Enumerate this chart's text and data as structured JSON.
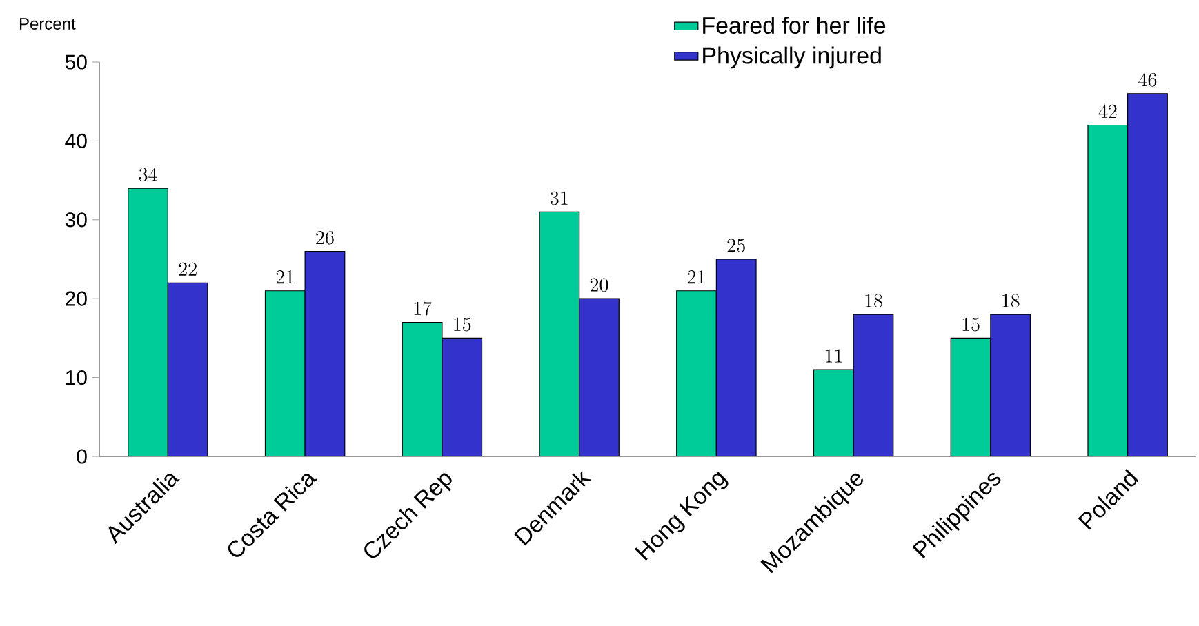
{
  "chart_data": {
    "type": "bar",
    "ylabel": "Percent",
    "categories": [
      "Australia",
      "Costa Rica",
      "Czech Rep",
      "Denmark",
      "Hong Kong",
      "Mozambique",
      "Philippines",
      "Poland"
    ],
    "series": [
      {
        "name": "Feared for her life",
        "color": "#00cc99",
        "values": [
          34,
          21,
          17,
          31,
          21,
          11,
          15,
          42
        ]
      },
      {
        "name": "Physically injured",
        "color": "#3333cc",
        "values": [
          22,
          26,
          15,
          20,
          25,
          18,
          18,
          46
        ]
      }
    ],
    "ylim": [
      0,
      50
    ],
    "yticks": [
      0,
      10,
      20,
      30,
      40,
      50
    ],
    "legend": "top",
    "data_labels": true,
    "grid": false
  }
}
